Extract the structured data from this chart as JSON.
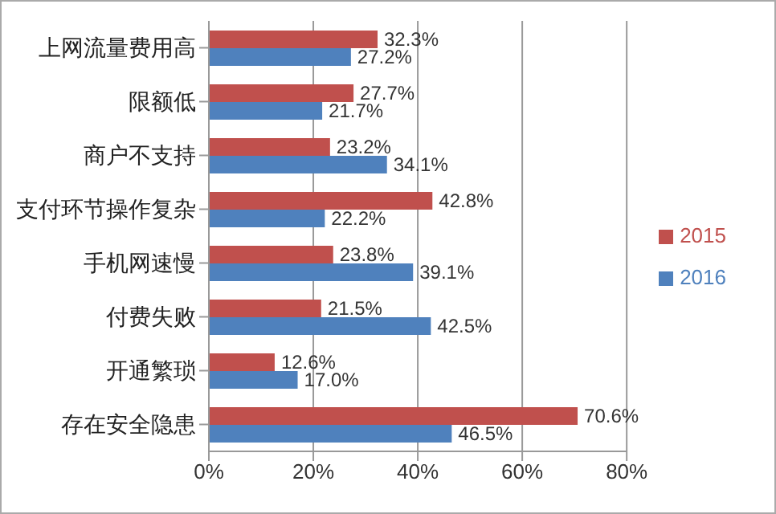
{
  "chart_data": {
    "type": "bar",
    "orientation": "horizontal",
    "categories": [
      "上网流量费用高",
      "限额低",
      "商户不支持",
      "支付环节操作复杂",
      "手机网速慢",
      "付费失败",
      "开通繁琐",
      "存在安全隐患"
    ],
    "series": [
      {
        "name": "2015",
        "color": "#c0504d",
        "values": [
          32.3,
          27.7,
          23.2,
          42.8,
          23.8,
          21.5,
          12.6,
          70.6
        ],
        "value_labels": [
          "32.3%",
          "27.7%",
          "23.2%",
          "42.8%",
          "23.8%",
          "21.5%",
          "12.6%",
          "70.6%"
        ]
      },
      {
        "name": "2016",
        "color": "#4f81bd",
        "values": [
          27.2,
          21.7,
          34.1,
          22.2,
          39.1,
          42.5,
          17.0,
          46.5
        ],
        "value_labels": [
          "27.2%",
          "21.7%",
          "34.1%",
          "22.2%",
          "39.1%",
          "42.5%",
          "17.0%",
          "46.5%"
        ]
      }
    ],
    "xlim": [
      0,
      80
    ],
    "xticks": [
      {
        "value": 0,
        "label": "0%"
      },
      {
        "value": 20,
        "label": "20%"
      },
      {
        "value": 40,
        "label": "40%"
      },
      {
        "value": 60,
        "label": "60%"
      },
      {
        "value": 80,
        "label": "80%"
      }
    ],
    "grid": "x",
    "legend": "right"
  }
}
